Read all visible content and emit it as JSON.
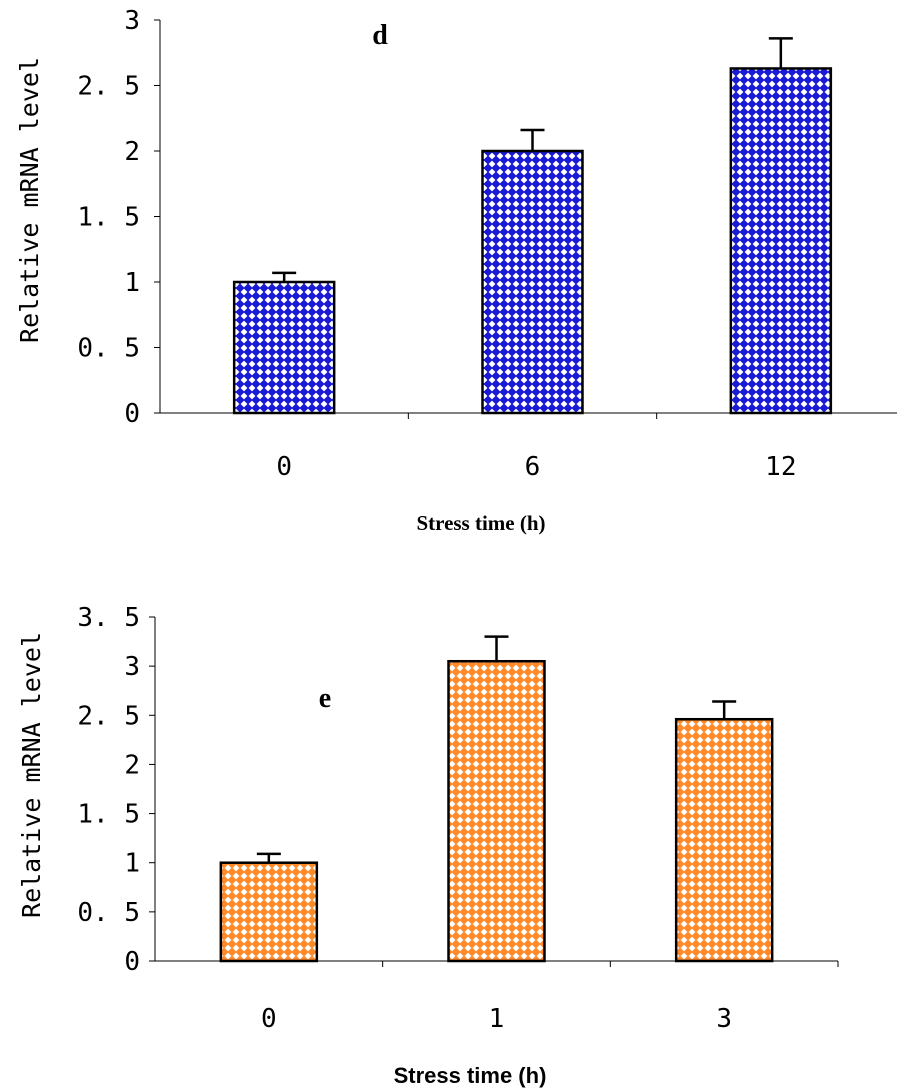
{
  "chart_data": [
    {
      "type": "bar",
      "panel_label": "d",
      "categories": [
        "0",
        "6",
        "12"
      ],
      "values": [
        1.0,
        2.0,
        2.63
      ],
      "errors": [
        0.07,
        0.16,
        0.23
      ],
      "ylabel": "Relative mRNA level",
      "xlabel": "Stress time (h)",
      "ylim": [
        0,
        3
      ],
      "yticks": [
        0,
        0.5,
        1,
        1.5,
        2,
        2.5,
        3
      ],
      "ytick_labels": [
        "0",
        "0. 5",
        "1",
        "1. 5",
        "2",
        "2. 5",
        "3"
      ],
      "bar_color": "#1a1ad6",
      "pattern_color": "#ffffff",
      "grid": false
    },
    {
      "type": "bar",
      "panel_label": "e",
      "categories": [
        "0",
        "1",
        "3"
      ],
      "values": [
        1.0,
        3.05,
        2.46
      ],
      "errors": [
        0.09,
        0.25,
        0.18
      ],
      "ylabel": "Relative mRNA level",
      "xlabel": "Stress time (h)",
      "ylim": [
        0,
        3.5
      ],
      "yticks": [
        0,
        0.5,
        1,
        1.5,
        2,
        2.5,
        3,
        3.5
      ],
      "ytick_labels": [
        "0",
        "0. 5",
        "1",
        "1. 5",
        "2",
        "2. 5",
        "3",
        "3. 5"
      ],
      "bar_color": "#ff7f1f",
      "pattern_color": "#ffffff",
      "grid": false
    }
  ]
}
